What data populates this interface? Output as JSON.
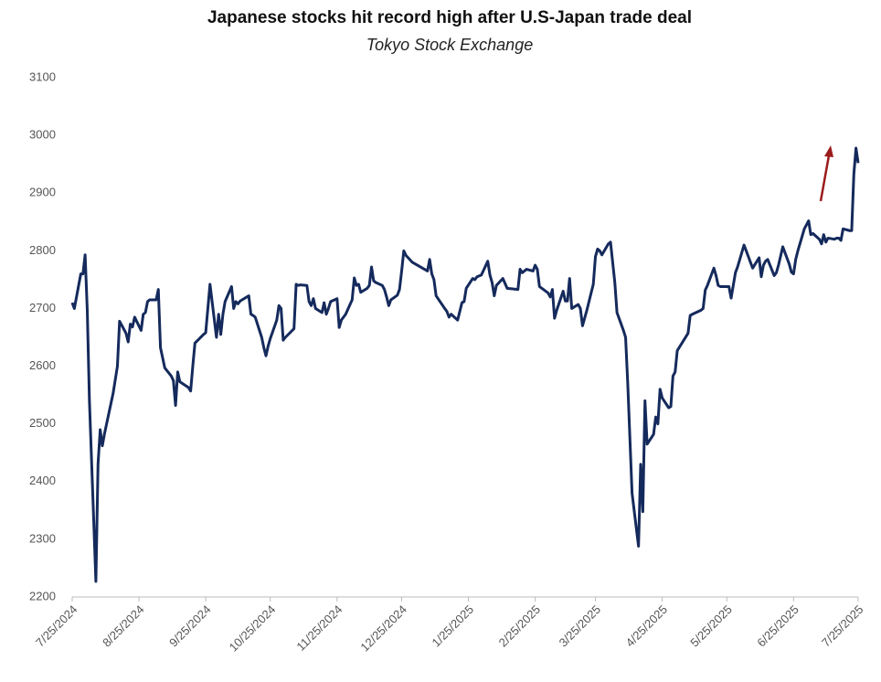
{
  "chart_data": {
    "type": "line",
    "title": "Japanese stocks hit record high after U.S-Japan trade deal",
    "subtitle": "Tokyo Stock Exchange",
    "x": [
      "7/25/2024",
      "7/26/2024",
      "7/29/2024",
      "7/30/2024",
      "7/31/2024",
      "8/1/2024",
      "8/2/2024",
      "8/5/2024",
      "8/6/2024",
      "8/7/2024",
      "8/8/2024",
      "8/9/2024",
      "8/13/2024",
      "8/15/2024",
      "8/16/2024",
      "8/19/2024",
      "8/20/2024",
      "8/21/2024",
      "8/22/2024",
      "8/23/2024",
      "8/26/2024",
      "8/27/2024",
      "8/28/2024",
      "8/29/2024",
      "8/30/2024",
      "9/2/2024",
      "9/3/2024",
      "9/4/2024",
      "9/6/2024",
      "9/9/2024",
      "9/10/2024",
      "9/11/2024",
      "9/12/2024",
      "9/13/2024",
      "9/17/2024",
      "9/18/2024",
      "9/19/2024",
      "9/20/2024",
      "9/24/2024",
      "9/25/2024",
      "9/26/2024",
      "9/27/2024",
      "9/30/2024",
      "10/1/2024",
      "10/2/2024",
      "10/3/2024",
      "10/4/2024",
      "10/7/2024",
      "10/8/2024",
      "10/9/2024",
      "10/10/2024",
      "10/11/2024",
      "10/15/2024",
      "10/16/2024",
      "10/17/2024",
      "10/18/2024",
      "10/21/2024",
      "10/22/2024",
      "10/23/2024",
      "10/24/2024",
      "10/25/2024",
      "10/28/2024",
      "10/29/2024",
      "10/30/2024",
      "10/31/2024",
      "11/1/2024",
      "11/5/2024",
      "11/6/2024",
      "11/7/2024",
      "11/8/2024",
      "11/11/2024",
      "11/12/2024",
      "11/13/2024",
      "11/14/2024",
      "11/15/2024",
      "11/18/2024",
      "11/19/2024",
      "11/20/2024",
      "11/21/2024",
      "11/22/2024",
      "11/25/2024",
      "11/26/2024",
      "11/27/2024",
      "11/28/2024",
      "11/29/2024",
      "12/2/2024",
      "12/3/2024",
      "12/4/2024",
      "12/5/2024",
      "12/6/2024",
      "12/9/2024",
      "12/10/2024",
      "12/11/2024",
      "12/12/2024",
      "12/13/2024",
      "12/16/2024",
      "12/17/2024",
      "12/18/2024",
      "12/19/2024",
      "12/20/2024",
      "12/23/2024",
      "12/24/2024",
      "12/25/2024",
      "12/26/2024",
      "12/27/2024",
      "12/30/2024",
      "1/6/2025",
      "1/7/2025",
      "1/8/2025",
      "1/9/2025",
      "1/10/2025",
      "1/14/2025",
      "1/15/2025",
      "1/16/2025",
      "1/17/2025",
      "1/20/2025",
      "1/21/2025",
      "1/22/2025",
      "1/23/2025",
      "1/24/2025",
      "1/27/2025",
      "1/28/2025",
      "1/29/2025",
      "1/31/2025",
      "2/3/2025",
      "2/4/2025",
      "2/5/2025",
      "2/6/2025",
      "2/7/2025",
      "2/10/2025",
      "2/12/2025",
      "2/17/2025",
      "2/18/2025",
      "2/19/2025",
      "2/20/2025",
      "2/21/2025",
      "2/24/2025",
      "2/25/2025",
      "2/26/2025",
      "2/27/2025",
      "3/3/2025",
      "3/4/2025",
      "3/5/2025",
      "3/6/2025",
      "3/7/2025",
      "3/10/2025",
      "3/11/2025",
      "3/12/2025",
      "3/13/2025",
      "3/14/2025",
      "3/17/2025",
      "3/18/2025",
      "3/19/2025",
      "3/21/2025",
      "3/24/2025",
      "3/25/2025",
      "3/26/2025",
      "3/27/2025",
      "3/28/2025",
      "3/31/2025",
      "4/1/2025",
      "4/3/2025",
      "4/4/2025",
      "4/7/2025",
      "4/8/2025",
      "4/9/2025",
      "4/11/2025",
      "4/14/2025",
      "4/15/2025",
      "4/16/2025",
      "4/17/2025",
      "4/18/2025",
      "4/21/2025",
      "4/22/2025",
      "4/23/2025",
      "4/24/2025",
      "4/25/2025",
      "4/28/2025",
      "4/29/2025",
      "4/30/2025",
      "5/1/2025",
      "5/2/2025",
      "5/7/2025",
      "5/8/2025",
      "5/9/2025",
      "5/13/2025",
      "5/14/2025",
      "5/15/2025",
      "5/16/2025",
      "5/19/2025",
      "5/20/2025",
      "5/21/2025",
      "5/22/2025",
      "5/26/2025",
      "5/27/2025",
      "5/28/2025",
      "5/29/2025",
      "5/30/2025",
      "6/2/2025",
      "6/3/2025",
      "6/4/2025",
      "6/5/2025",
      "6/6/2025",
      "6/9/2025",
      "6/10/2025",
      "6/11/2025",
      "6/12/2025",
      "6/13/2025",
      "6/16/2025",
      "6/17/2025",
      "6/18/2025",
      "6/20/2025",
      "6/23/2025",
      "6/24/2025",
      "6/25/2025",
      "6/26/2025",
      "6/27/2025",
      "6/30/2025",
      "7/1/2025",
      "7/2/2025",
      "7/3/2025",
      "7/4/2025",
      "7/7/2025",
      "7/8/2025",
      "7/9/2025",
      "7/10/2025",
      "7/11/2025",
      "7/14/2025",
      "7/15/2025",
      "7/16/2025",
      "7/17/2025",
      "7/18/2025",
      "7/21/2025",
      "7/22/2025",
      "7/23/2025",
      "7/24/2025",
      "7/25/2025"
    ],
    "series": [
      {
        "name": "Tokyo Stock Exchange",
        "color": "#152a5c",
        "values": [
          2710,
          2700,
          2760,
          2760,
          2793,
          2697,
          2540,
          2227,
          2430,
          2490,
          2462,
          2483,
          2553,
          2600,
          2678,
          2657,
          2642,
          2673,
          2668,
          2685,
          2662,
          2690,
          2693,
          2712,
          2715,
          2715,
          2733,
          2632,
          2597,
          2583,
          2575,
          2532,
          2590,
          2573,
          2563,
          2557,
          2600,
          2640,
          2655,
          2658,
          2700,
          2742,
          2650,
          2690,
          2655,
          2690,
          2712,
          2738,
          2700,
          2712,
          2708,
          2713,
          2722,
          2690,
          2688,
          2685,
          2650,
          2632,
          2618,
          2635,
          2648,
          2680,
          2705,
          2700,
          2645,
          2650,
          2665,
          2742,
          2740,
          2741,
          2740,
          2712,
          2705,
          2717,
          2700,
          2693,
          2710,
          2690,
          2700,
          2712,
          2717,
          2667,
          2680,
          2685,
          2690,
          2715,
          2753,
          2740,
          2742,
          2728,
          2735,
          2740,
          2772,
          2748,
          2745,
          2740,
          2733,
          2720,
          2705,
          2715,
          2723,
          2733,
          2765,
          2800,
          2792,
          2780,
          2765,
          2785,
          2760,
          2750,
          2722,
          2700,
          2695,
          2685,
          2690,
          2680,
          2695,
          2710,
          2712,
          2735,
          2752,
          2750,
          2755,
          2758,
          2782,
          2758,
          2745,
          2722,
          2740,
          2752,
          2735,
          2733,
          2768,
          2762,
          2765,
          2768,
          2765,
          2775,
          2768,
          2738,
          2727,
          2720,
          2733,
          2683,
          2697,
          2730,
          2713,
          2713,
          2752,
          2700,
          2707,
          2700,
          2670,
          2697,
          2742,
          2790,
          2803,
          2800,
          2793,
          2812,
          2815,
          2745,
          2693,
          2662,
          2650,
          2570,
          2380,
          2288,
          2430,
          2348,
          2540,
          2465,
          2482,
          2512,
          2500,
          2560,
          2545,
          2528,
          2530,
          2583,
          2590,
          2627,
          2657,
          2688,
          2690,
          2697,
          2700,
          2732,
          2740,
          2770,
          2757,
          2740,
          2738,
          2738,
          2718,
          2740,
          2762,
          2772,
          2810,
          2800,
          2790,
          2780,
          2770,
          2788,
          2755,
          2775,
          2782,
          2785,
          2757,
          2762,
          2775,
          2807,
          2777,
          2763,
          2760,
          2785,
          2800,
          2838,
          2845,
          2852,
          2828,
          2830,
          2820,
          2812,
          2828,
          2815,
          2822,
          2820,
          2822,
          2822,
          2818,
          2838,
          2835,
          2835,
          2933,
          2978,
          2952
        ]
      }
    ],
    "xlim": [
      "7/25/2024",
      "7/25/2025"
    ],
    "xticks": [
      "7/25/2024",
      "8/25/2024",
      "9/25/2024",
      "10/25/2024",
      "11/25/2024",
      "12/25/2024",
      "1/25/2025",
      "2/25/2025",
      "3/25/2025",
      "4/25/2025",
      "5/25/2025",
      "6/25/2025",
      "7/25/2025"
    ],
    "ylim": [
      2200,
      3100
    ],
    "yticks": [
      2200,
      2300,
      2400,
      2500,
      2600,
      2700,
      2800,
      2900,
      3000,
      3100
    ]
  }
}
